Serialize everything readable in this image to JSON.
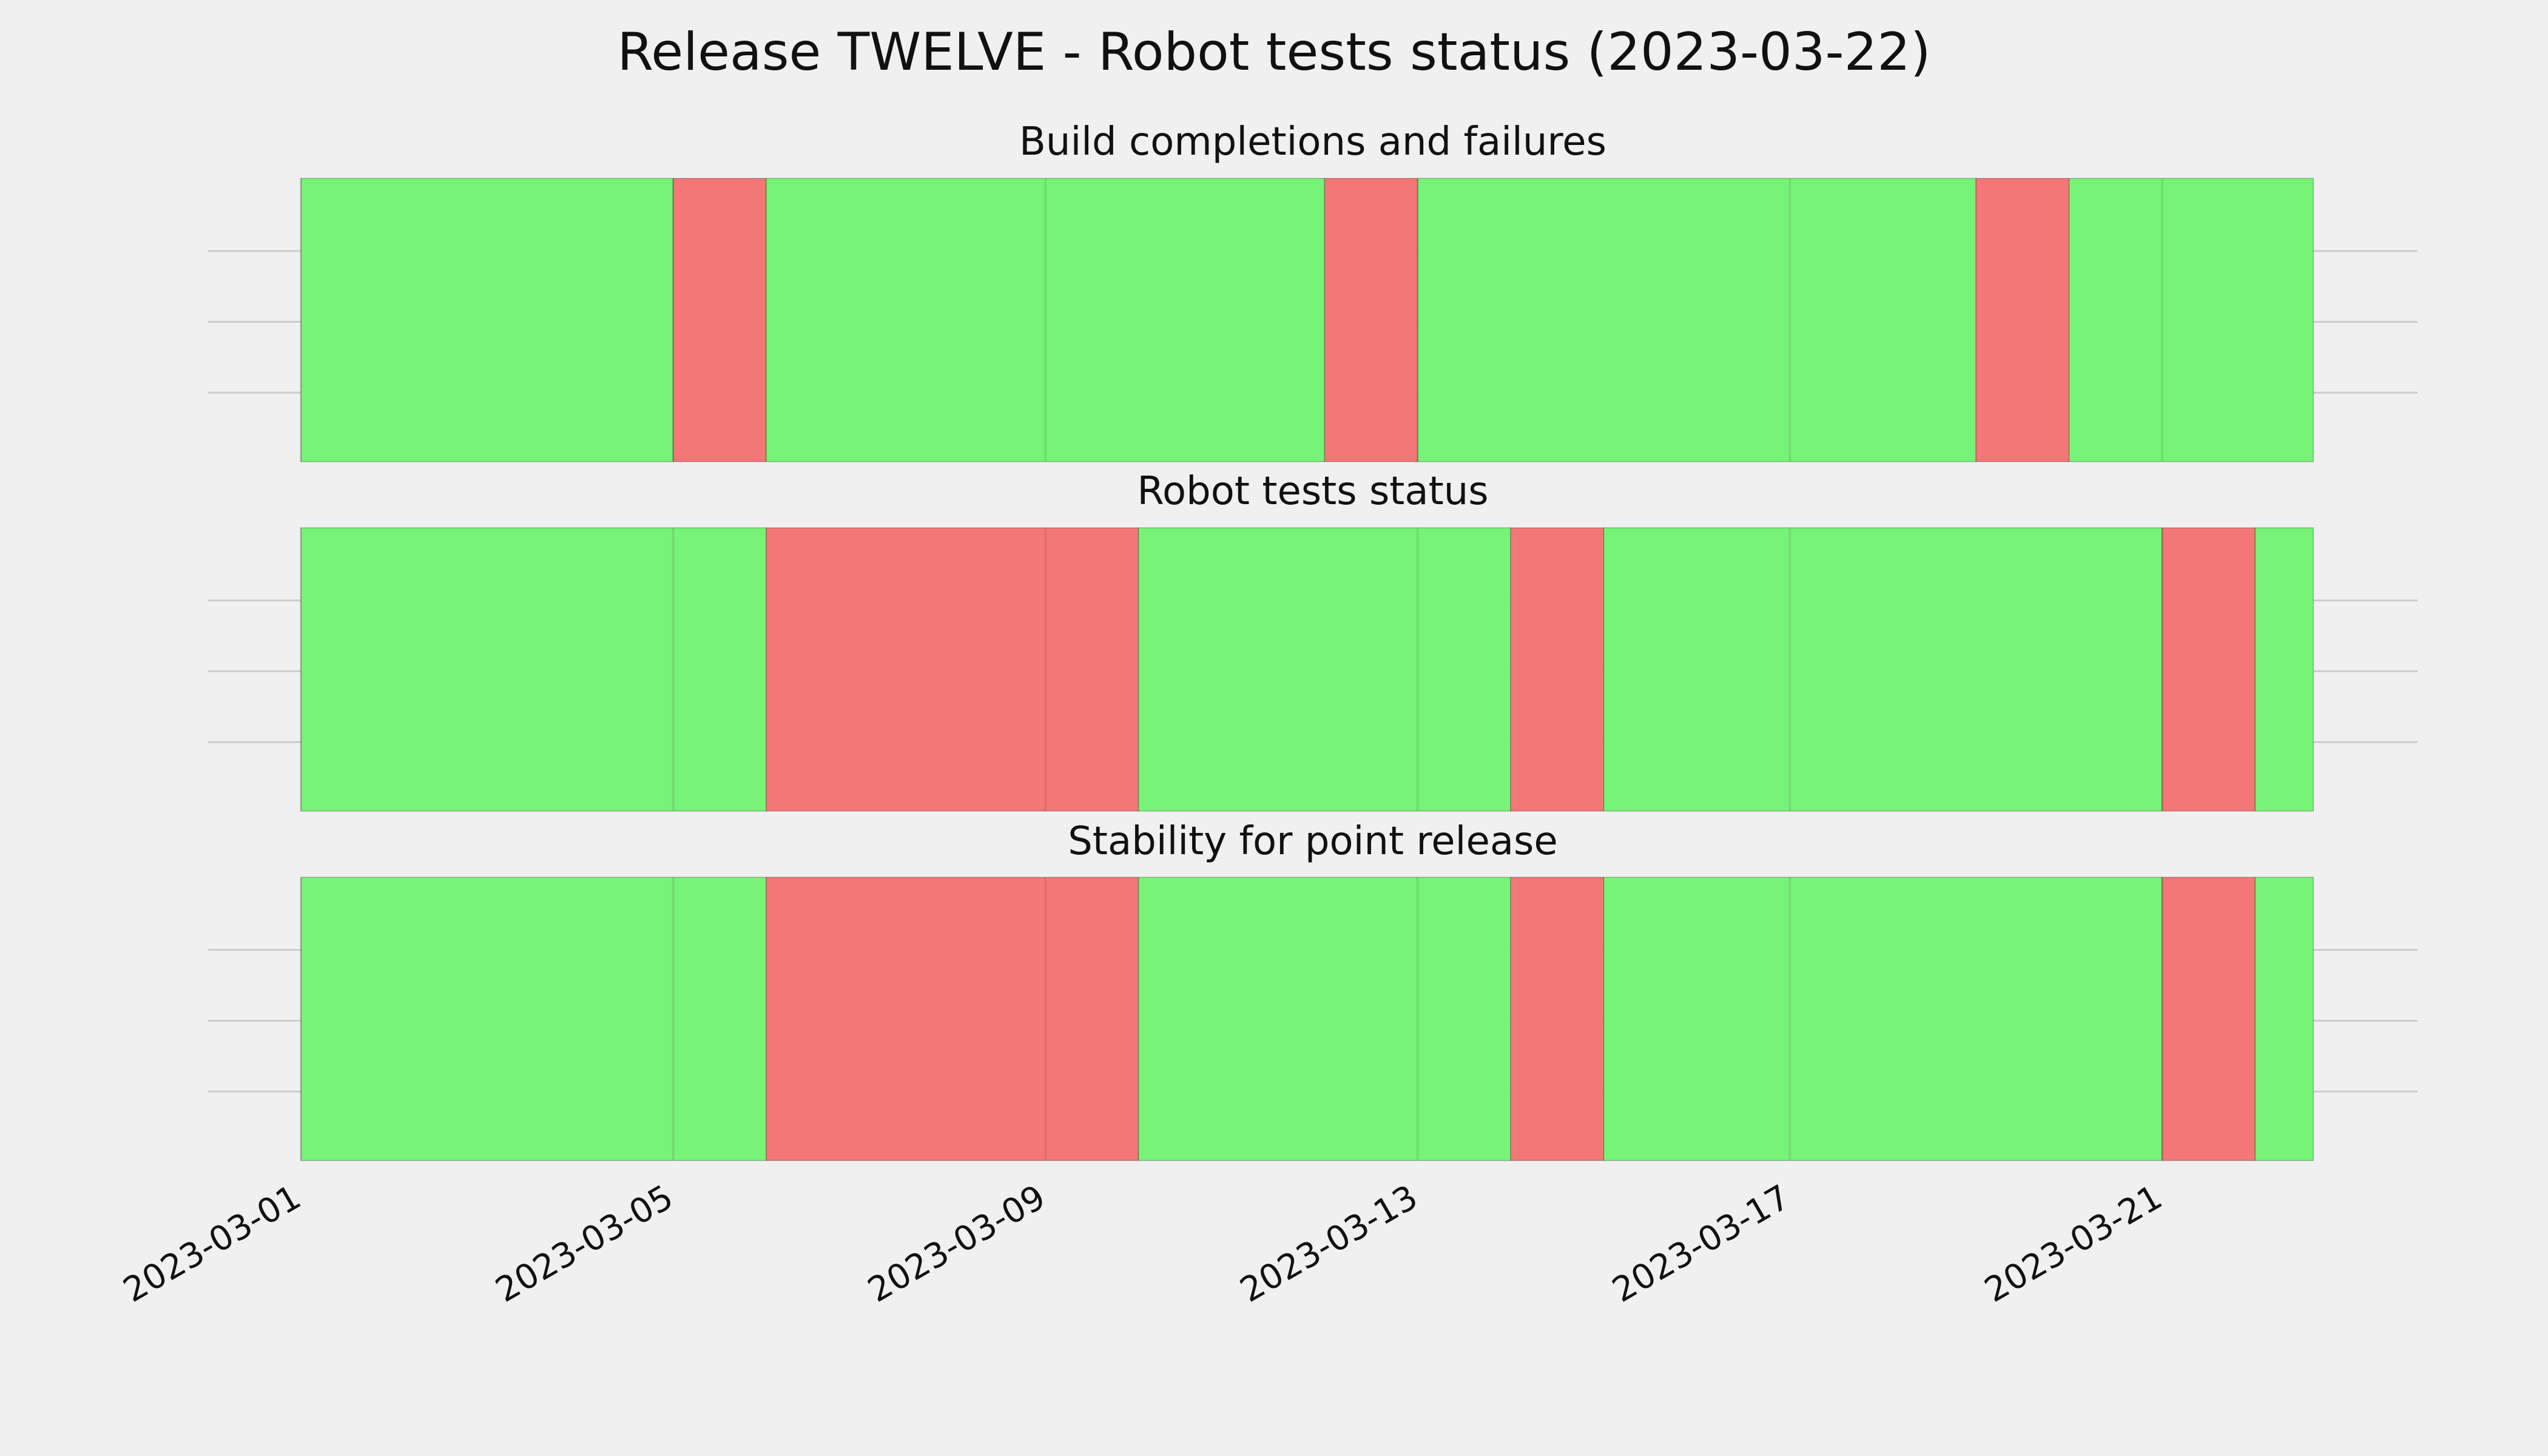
{
  "chart_data": {
    "type": "timeline",
    "title": "Release TWELVE - Robot tests status (2023-03-22)",
    "x_range": [
      "2023-03-01",
      "2023-03-22 15:00"
    ],
    "x_ticks": [
      "2023-03-01",
      "2023-03-05",
      "2023-03-09",
      "2023-03-13",
      "2023-03-17",
      "2023-03-21"
    ],
    "grid": true,
    "colors": {
      "ok": "#77f477",
      "fail": "#f47777",
      "background": "#f0f0f0",
      "grid": "#cccccc"
    },
    "panels": [
      {
        "title": "Build completions and failures",
        "segments": [
          {
            "start": "2023-03-01",
            "end": "2023-03-05",
            "status": "ok"
          },
          {
            "start": "2023-03-05",
            "end": "2023-03-06",
            "status": "fail"
          },
          {
            "start": "2023-03-06",
            "end": "2023-03-12",
            "status": "ok"
          },
          {
            "start": "2023-03-12",
            "end": "2023-03-13",
            "status": "fail"
          },
          {
            "start": "2023-03-13",
            "end": "2023-03-19",
            "status": "ok"
          },
          {
            "start": "2023-03-19",
            "end": "2023-03-20",
            "status": "fail"
          },
          {
            "start": "2023-03-20",
            "end": "2023-03-22 15:00",
            "status": "ok"
          }
        ]
      },
      {
        "title": "Robot tests status",
        "segments": [
          {
            "start": "2023-03-01",
            "end": "2023-03-06",
            "status": "ok"
          },
          {
            "start": "2023-03-06",
            "end": "2023-03-10",
            "status": "fail"
          },
          {
            "start": "2023-03-10",
            "end": "2023-03-14",
            "status": "ok"
          },
          {
            "start": "2023-03-14",
            "end": "2023-03-15",
            "status": "fail"
          },
          {
            "start": "2023-03-15",
            "end": "2023-03-21",
            "status": "ok"
          },
          {
            "start": "2023-03-21",
            "end": "2023-03-22",
            "status": "fail"
          },
          {
            "start": "2023-03-22",
            "end": "2023-03-22 15:00",
            "status": "ok"
          }
        ]
      },
      {
        "title": "Stability for point release",
        "segments": [
          {
            "start": "2023-03-01",
            "end": "2023-03-06",
            "status": "ok"
          },
          {
            "start": "2023-03-06",
            "end": "2023-03-10",
            "status": "fail"
          },
          {
            "start": "2023-03-10",
            "end": "2023-03-14",
            "status": "ok"
          },
          {
            "start": "2023-03-14",
            "end": "2023-03-15",
            "status": "fail"
          },
          {
            "start": "2023-03-15",
            "end": "2023-03-21",
            "status": "ok"
          },
          {
            "start": "2023-03-21",
            "end": "2023-03-22",
            "status": "fail"
          },
          {
            "start": "2023-03-22",
            "end": "2023-03-22 15:00",
            "status": "ok"
          }
        ]
      }
    ]
  }
}
